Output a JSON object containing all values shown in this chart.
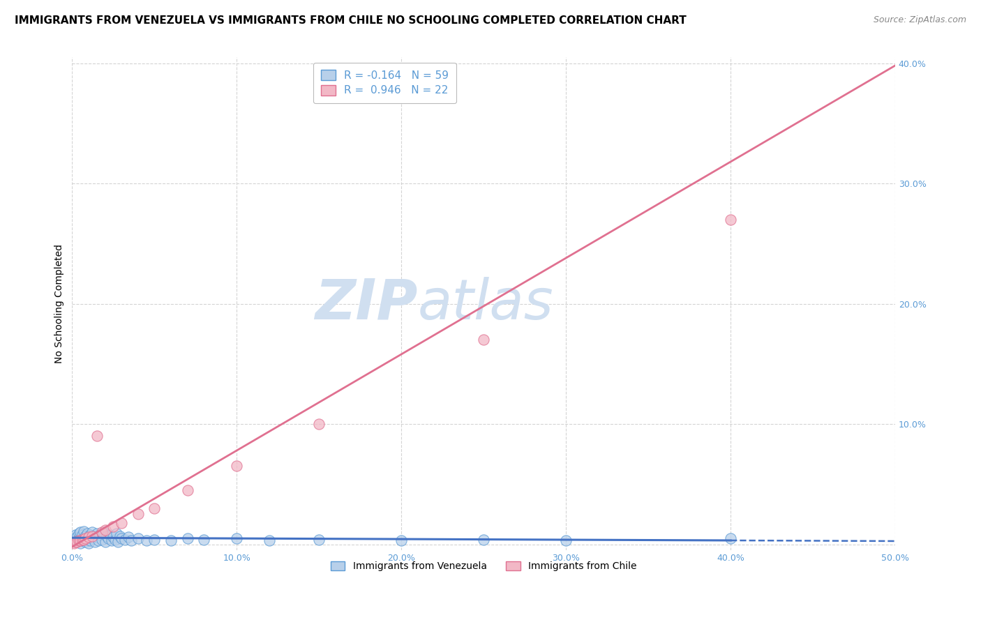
{
  "title": "IMMIGRANTS FROM VENEZUELA VS IMMIGRANTS FROM CHILE NO SCHOOLING COMPLETED CORRELATION CHART",
  "source": "Source: ZipAtlas.com",
  "ylabel": "No Schooling Completed",
  "xlim": [
    0.0,
    0.5
  ],
  "ylim": [
    -0.005,
    0.405
  ],
  "legend_items": [
    {
      "label": "Immigrants from Venezuela",
      "R": -0.164,
      "N": 59,
      "face_color": "#b8d0ea",
      "edge_color": "#5b9bd5",
      "line_color": "#4472c4",
      "line_style": "-"
    },
    {
      "label": "Immigrants from Chile",
      "R": 0.946,
      "N": 22,
      "face_color": "#f2b8c6",
      "edge_color": "#e07090",
      "line_color": "#e07090",
      "line_style": "-"
    }
  ],
  "watermark_zip": "ZIP",
  "watermark_atlas": "atlas",
  "watermark_color": "#d0dff0",
  "background_color": "#ffffff",
  "grid_color": "#d0d0d0",
  "title_fontsize": 11,
  "tick_fontsize": 9,
  "venezuela_x": [
    0.001,
    0.002,
    0.002,
    0.003,
    0.003,
    0.004,
    0.004,
    0.005,
    0.005,
    0.005,
    0.006,
    0.006,
    0.007,
    0.007,
    0.008,
    0.008,
    0.009,
    0.009,
    0.01,
    0.01,
    0.011,
    0.011,
    0.012,
    0.012,
    0.013,
    0.014,
    0.015,
    0.015,
    0.016,
    0.017,
    0.018,
    0.019,
    0.02,
    0.021,
    0.022,
    0.023,
    0.024,
    0.025,
    0.026,
    0.027,
    0.028,
    0.029,
    0.03,
    0.032,
    0.034,
    0.036,
    0.04,
    0.045,
    0.05,
    0.06,
    0.07,
    0.08,
    0.1,
    0.12,
    0.15,
    0.2,
    0.25,
    0.3,
    0.4
  ],
  "venezuela_y": [
    0.005,
    0.003,
    0.008,
    0.002,
    0.006,
    0.004,
    0.009,
    0.001,
    0.007,
    0.01,
    0.003,
    0.008,
    0.005,
    0.011,
    0.002,
    0.007,
    0.004,
    0.009,
    0.001,
    0.006,
    0.008,
    0.003,
    0.01,
    0.005,
    0.007,
    0.002,
    0.006,
    0.009,
    0.003,
    0.008,
    0.004,
    0.01,
    0.002,
    0.007,
    0.005,
    0.008,
    0.003,
    0.006,
    0.004,
    0.009,
    0.002,
    0.007,
    0.005,
    0.004,
    0.006,
    0.003,
    0.005,
    0.003,
    0.004,
    0.003,
    0.005,
    0.004,
    0.005,
    0.003,
    0.004,
    0.003,
    0.004,
    0.003,
    0.005
  ],
  "chile_x": [
    0.001,
    0.002,
    0.003,
    0.004,
    0.005,
    0.006,
    0.007,
    0.008,
    0.01,
    0.012,
    0.015,
    0.018,
    0.02,
    0.025,
    0.03,
    0.04,
    0.05,
    0.07,
    0.1,
    0.15,
    0.25,
    0.4
  ],
  "chile_y": [
    0.001,
    0.002,
    0.002,
    0.003,
    0.003,
    0.004,
    0.004,
    0.005,
    0.006,
    0.007,
    0.09,
    0.01,
    0.012,
    0.015,
    0.018,
    0.025,
    0.03,
    0.045,
    0.065,
    0.1,
    0.17,
    0.27
  ],
  "vline_x_solid_end": 0.4,
  "vline_x_dash_start": 0.4
}
